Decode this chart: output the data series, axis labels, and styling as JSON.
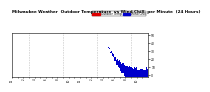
{
  "background_color": "#ffffff",
  "num_points": 1440,
  "ylim": [
    -2,
    52
  ],
  "yticks": [
    0,
    10,
    20,
    30,
    40,
    50
  ],
  "dot_color": "#dd0000",
  "bar_color": "#0000cc",
  "vline_color": "#888888",
  "legend_temp_color": "#dd0000",
  "legend_chill_color": "#0000cc",
  "title_text": "Milwaukee Weather Outdoor Temperature vs Wind Chill per Minute (24 Hours)",
  "title_fontsize": 3.0,
  "tick_fontsize": 2.2,
  "legend_fontsize": 2.2
}
